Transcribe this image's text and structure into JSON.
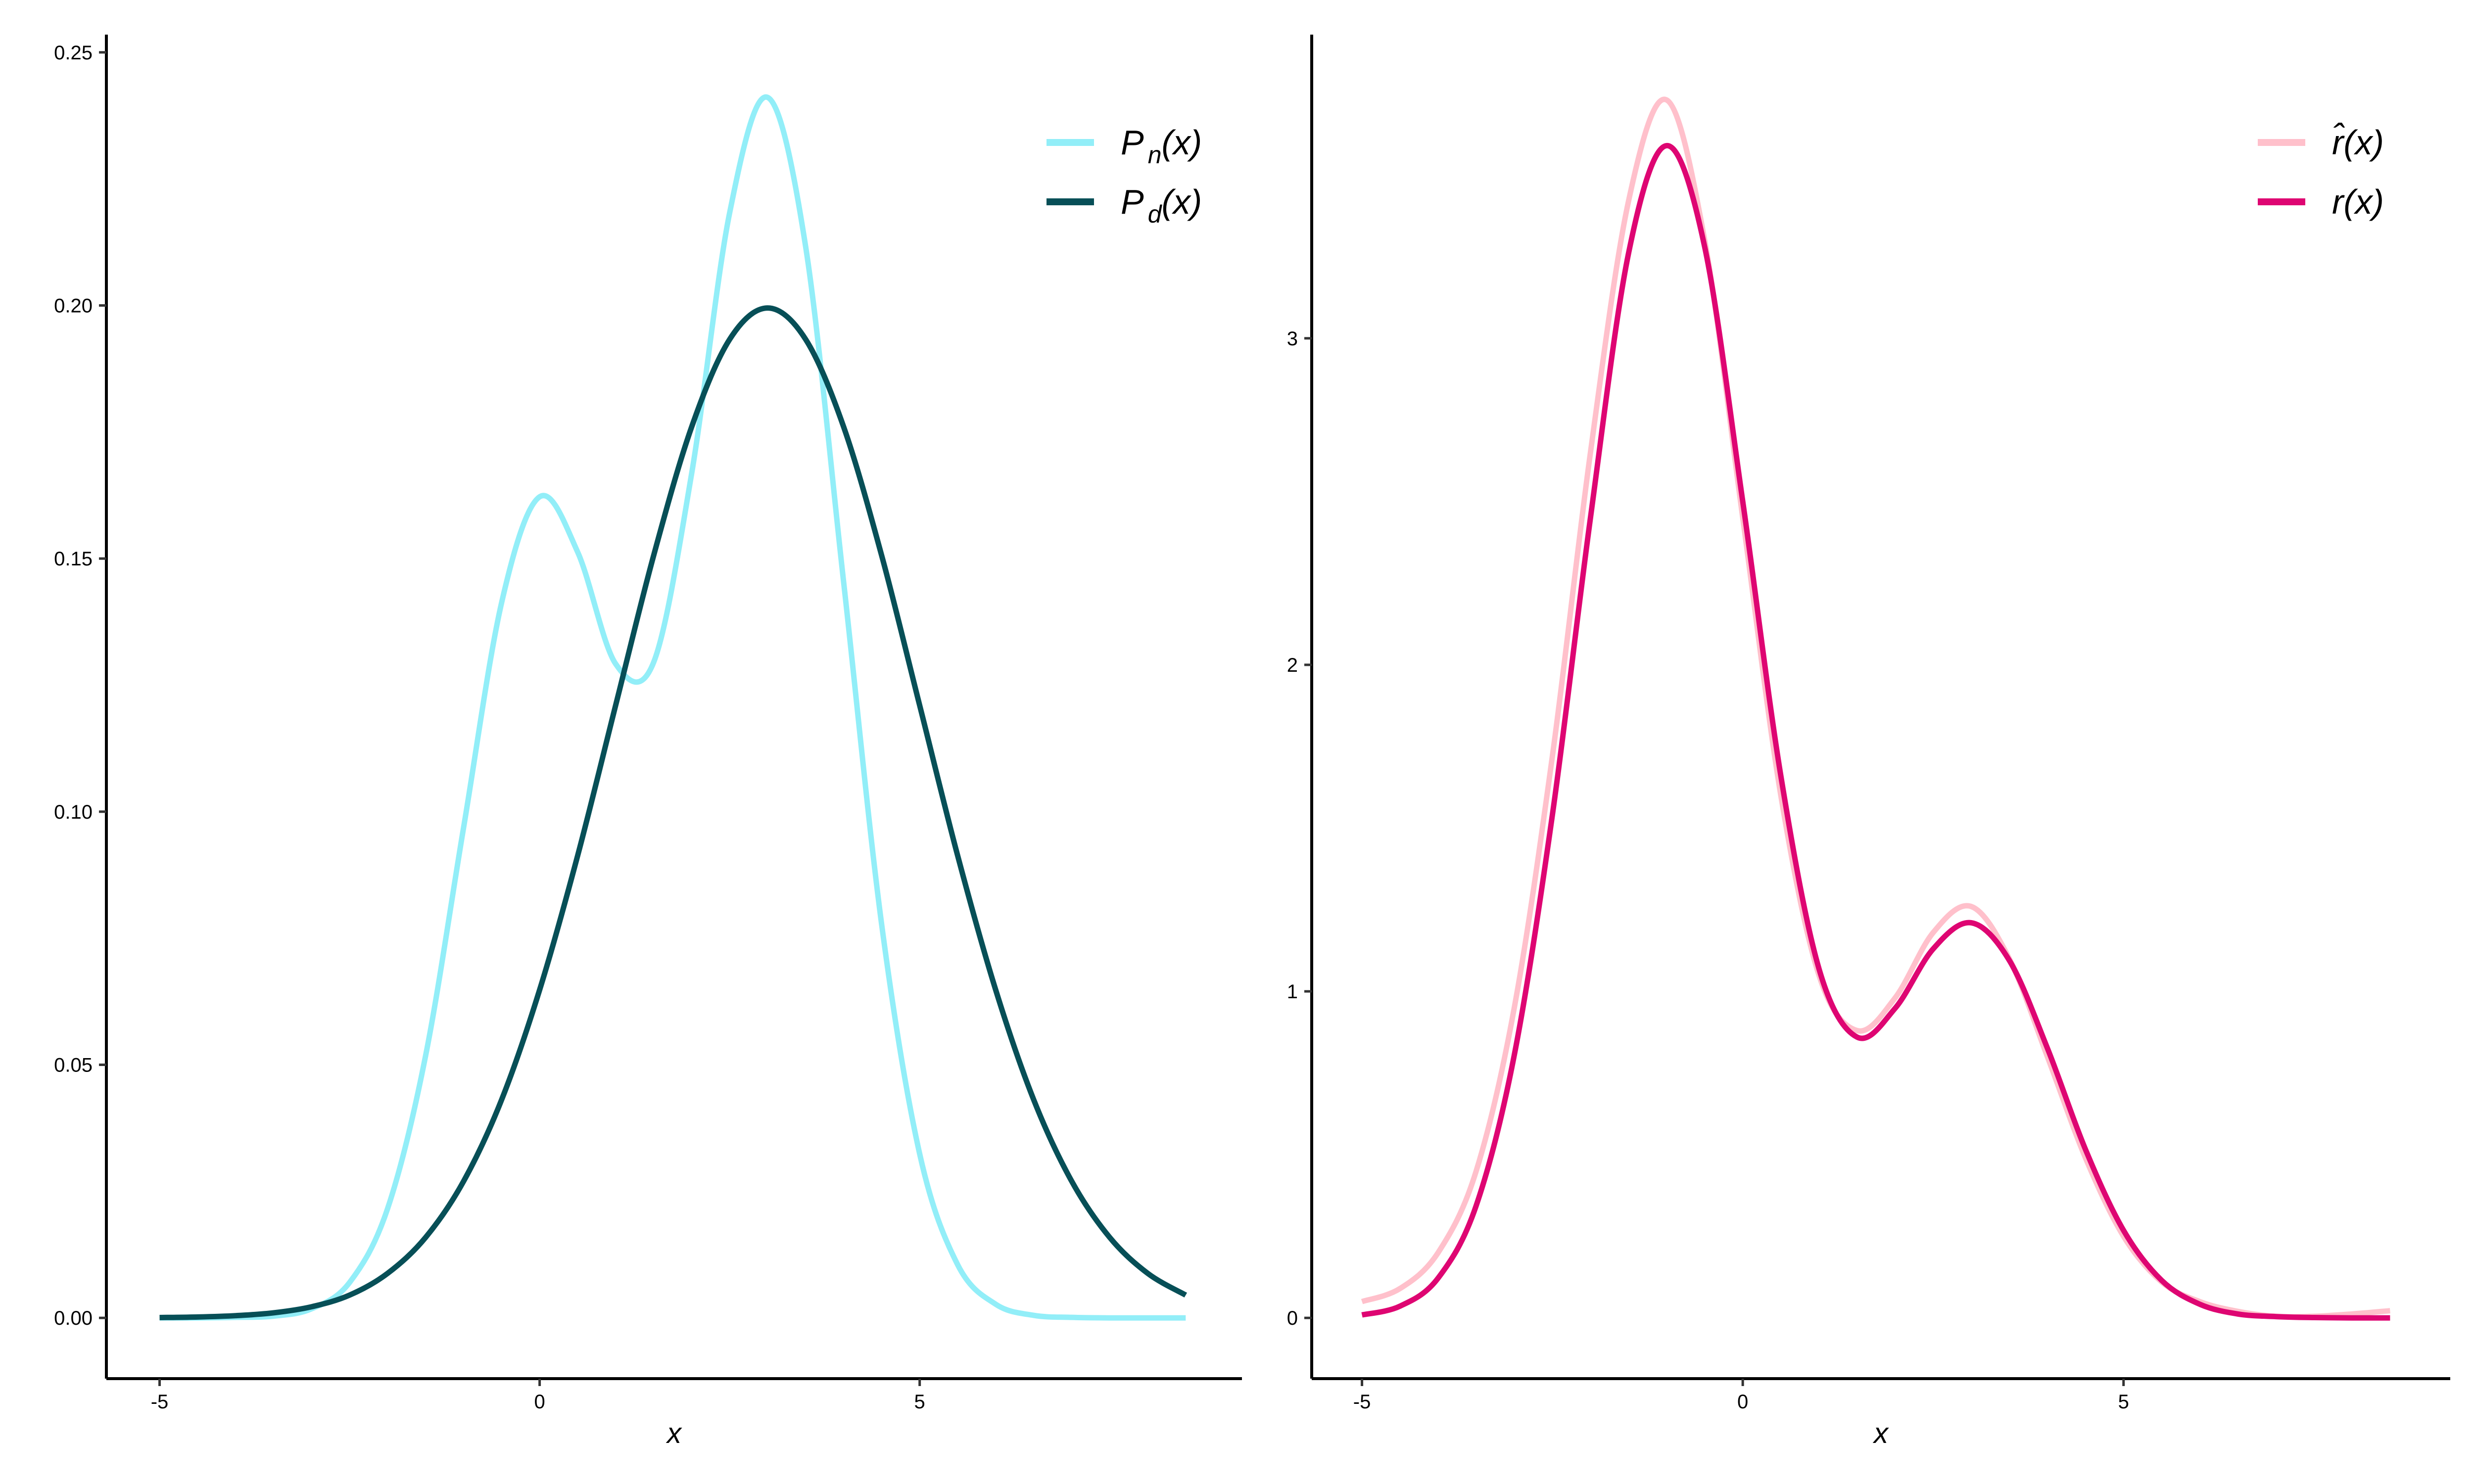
{
  "chart_data": [
    {
      "type": "line",
      "xlabel": "x",
      "ylabel": "",
      "xlim": [
        -5.7,
        9.24
      ],
      "ylim": [
        -0.012,
        0.2535
      ],
      "xticks": [
        -5,
        0,
        5
      ],
      "xtick_labels": [
        "-5",
        "0",
        "5"
      ],
      "yticks": [
        0,
        0.05,
        0.1,
        0.15,
        0.2,
        0.25
      ],
      "ytick_labels": [
        "0.00",
        "0.05",
        "0.10",
        "0.15",
        "0.20",
        "0.25"
      ],
      "grid": false,
      "legend_position": "top-right",
      "x": [
        -5,
        -4.5,
        -4,
        -3.5,
        -3,
        -2.5,
        -2,
        -1.5,
        -1,
        -0.5,
        0,
        0.5,
        1,
        1.5,
        2,
        2.5,
        3,
        3.5,
        4,
        4.5,
        5,
        5.5,
        6,
        6.5,
        7,
        7.5,
        8,
        8.5
      ],
      "series": [
        {
          "name": "P_n(x)",
          "label_main": "P",
          "label_sub": "n",
          "label_tail": "(x)",
          "color": "#92EEF8",
          "values": [
            0,
            0,
            0.0001,
            0.00035,
            0.0018,
            0.007,
            0.0216,
            0.0518,
            0.0969,
            0.1413,
            0.1622,
            0.1513,
            0.1292,
            0.1295,
            0.1668,
            0.2183,
            0.2411,
            0.2116,
            0.1453,
            0.0777,
            0.0324,
            0.0105,
            0.0027,
            0.0005,
            0.0001,
            0,
            0,
            0
          ]
        },
        {
          "name": "P_d(x)",
          "label_main": "P",
          "label_sub": "d",
          "label_tail": "(x)",
          "color": "#074F57",
          "values": [
            7e-05,
            0.00018,
            0.00044,
            0.001,
            0.0022,
            0.0045,
            0.0088,
            0.0159,
            0.027,
            0.0431,
            0.0648,
            0.0913,
            0.121,
            0.1506,
            0.176,
            0.1933,
            0.1995,
            0.1933,
            0.176,
            0.1506,
            0.121,
            0.0913,
            0.0648,
            0.0431,
            0.027,
            0.0159,
            0.0088,
            0.0045
          ]
        }
      ]
    },
    {
      "type": "line",
      "xlabel": "x",
      "ylabel": "",
      "xlim": [
        -5.66,
        9.29
      ],
      "ylim": [
        -0.186,
        3.93
      ],
      "xticks": [
        -5,
        0,
        5
      ],
      "xtick_labels": [
        "-5",
        "0",
        "5"
      ],
      "yticks": [
        0,
        1,
        2,
        3
      ],
      "ytick_labels": [
        "0",
        "1",
        "2",
        "3"
      ],
      "grid": false,
      "legend_position": "top-right",
      "x": [
        -5,
        -4.5,
        -4,
        -3.5,
        -3,
        -2.5,
        -2,
        -1.5,
        -1,
        -0.5,
        0,
        0.5,
        1,
        1.5,
        2,
        2.5,
        3,
        3.5,
        4,
        4.5,
        5,
        5.5,
        6,
        6.5,
        7,
        7.5,
        8,
        8.5
      ],
      "series": [
        {
          "name": "r̂(x)",
          "label_main": "r̂",
          "label_sub": "",
          "label_tail": "(x)",
          "color": "#FFC0CB",
          "values": [
            0.05,
            0.09,
            0.2,
            0.45,
            0.95,
            1.72,
            2.65,
            3.42,
            3.73,
            3.3,
            2.45,
            1.6,
            1.05,
            0.88,
            0.98,
            1.18,
            1.26,
            1.1,
            0.8,
            0.49,
            0.25,
            0.11,
            0.05,
            0.02,
            0.005,
            0.005,
            0.012,
            0.022
          ]
        },
        {
          "name": "r(x)",
          "label_main": "r",
          "label_sub": "",
          "label_tail": "(x)",
          "color": "#DE0572",
          "values": [
            0.009,
            0.036,
            0.122,
            0.344,
            0.805,
            1.54,
            2.45,
            3.26,
            3.59,
            3.28,
            2.5,
            1.66,
            1.07,
            0.86,
            0.948,
            1.13,
            1.21,
            1.095,
            0.826,
            0.516,
            0.268,
            0.115,
            0.042,
            0.012,
            0.004,
            0.001,
            0,
            0
          ]
        }
      ]
    }
  ]
}
